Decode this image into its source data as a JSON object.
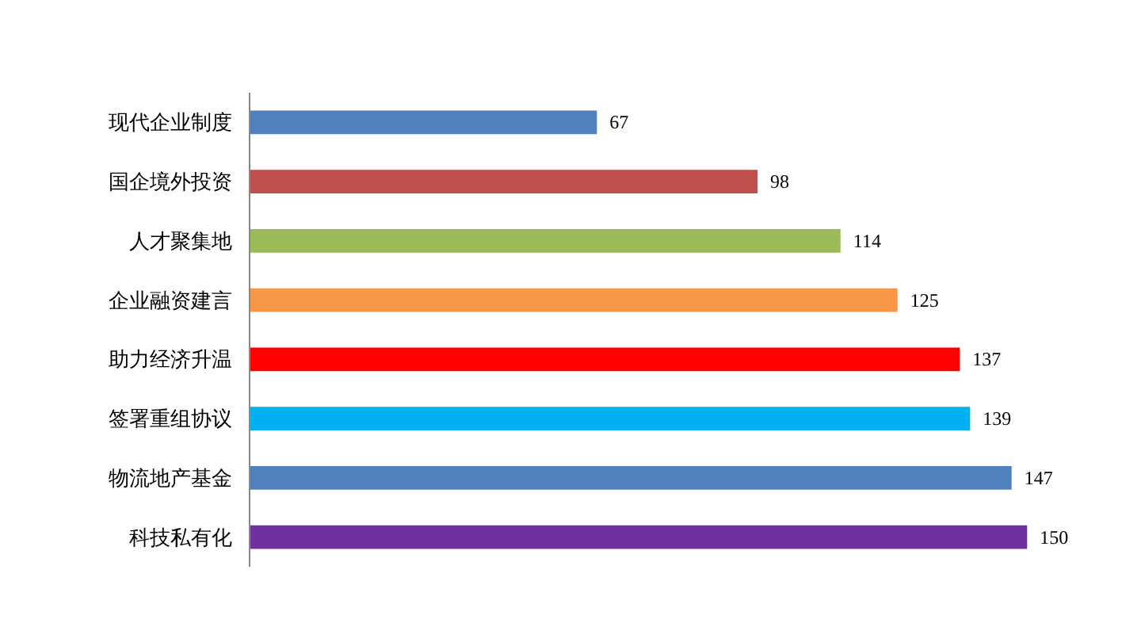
{
  "chart_data": {
    "type": "bar",
    "orientation": "horizontal",
    "data_labels": true,
    "grid": false,
    "categories": [
      "现代企业制度",
      "国企境外投资",
      "人才聚集地",
      "企业融资建言",
      "助力经济升温",
      "签署重组协议",
      "物流地产基金",
      "科技私有化"
    ],
    "values": [
      67,
      98,
      114,
      125,
      137,
      139,
      147,
      150
    ],
    "colors": [
      "#4f81bd",
      "#c0504d",
      "#9bbb59",
      "#f79646",
      "#ff0000",
      "#00b0f0",
      "#4f81bd",
      "#7030a0"
    ]
  }
}
